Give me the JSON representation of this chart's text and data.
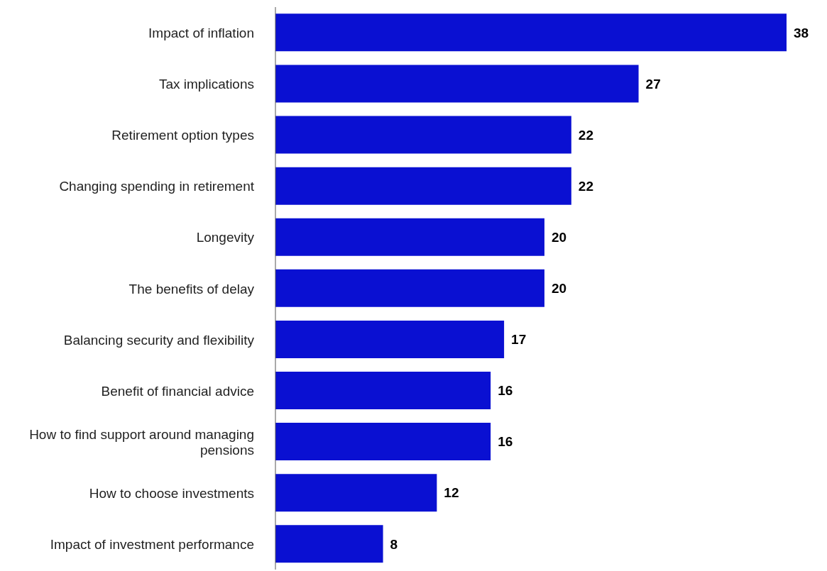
{
  "chart_data": {
    "type": "bar",
    "orientation": "horizontal",
    "categories": [
      "Impact of inflation",
      "Tax implications",
      "Retirement option types",
      "Changing spending in retirement",
      "Longevity",
      "The benefits of delay",
      "Balancing security and flexibility",
      "Benefit of financial advice",
      "How to find support around managing pensions",
      "How to choose investments",
      "Impact of investment performance"
    ],
    "values": [
      38,
      27,
      22,
      22,
      20,
      20,
      17,
      16,
      16,
      12,
      8
    ],
    "color": "#0a10d2",
    "data_labels": true,
    "grid": false,
    "legend": false
  }
}
